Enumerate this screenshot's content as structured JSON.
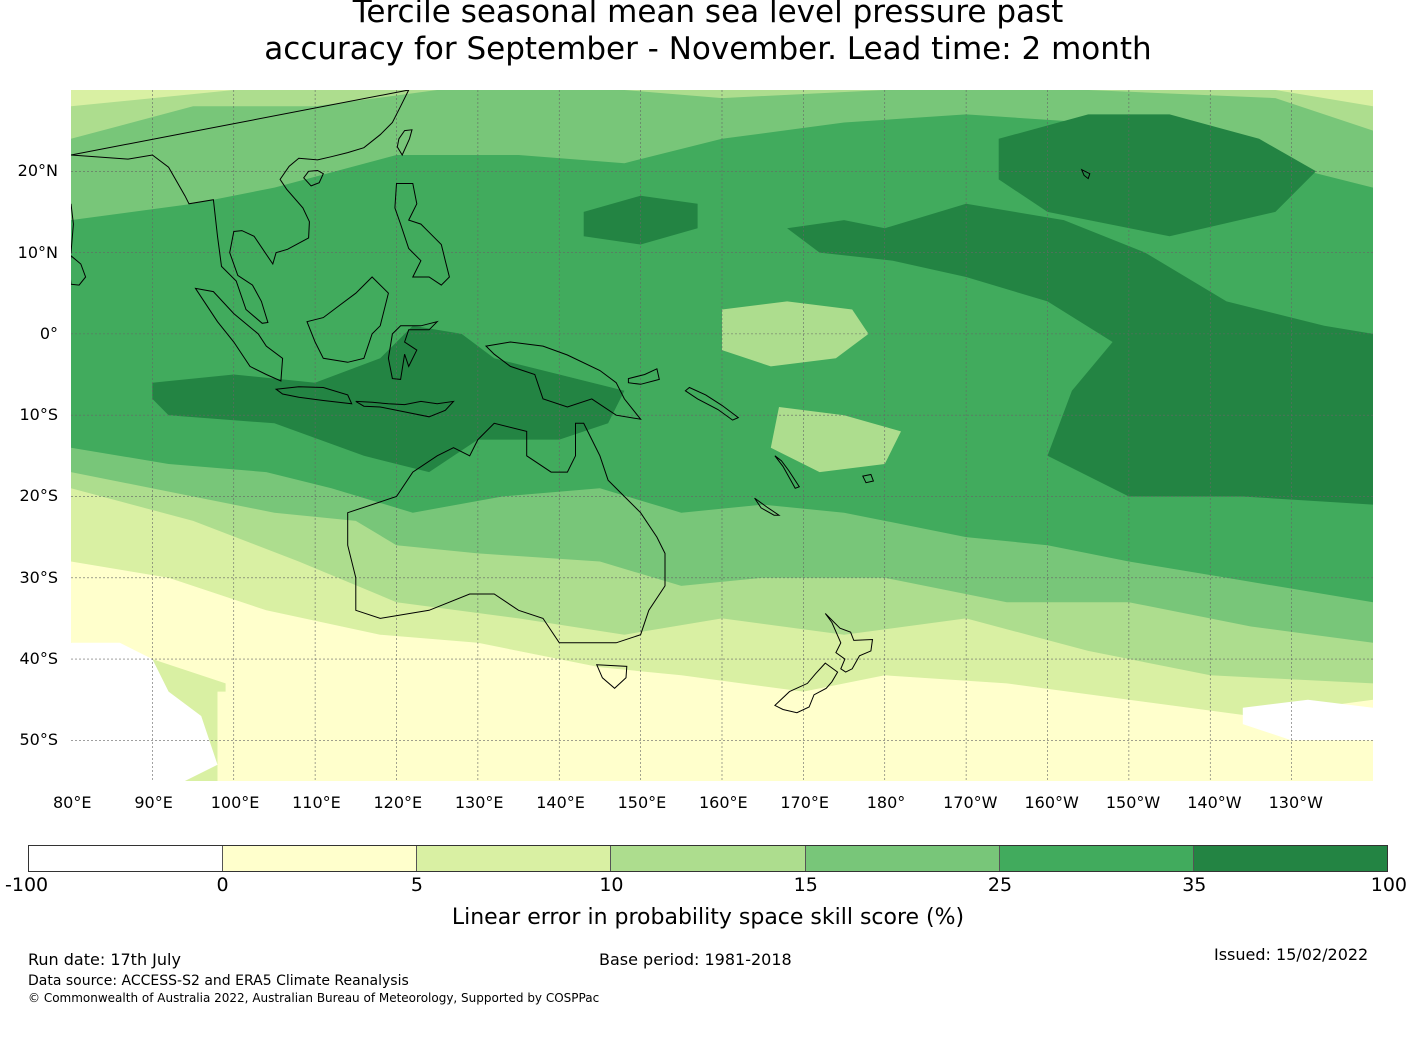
{
  "title": {
    "line1": "Tercile seasonal mean sea level pressure past",
    "line2": "accuracy for September - November. Lead time: 2 month"
  },
  "map": {
    "lon_range": [
      80,
      240
    ],
    "lat_range": [
      -55,
      30
    ],
    "lat_labels": [
      "20°N",
      "10°N",
      "0°",
      "10°S",
      "20°S",
      "30°S",
      "40°S",
      "50°S"
    ],
    "lon_labels": [
      "80°E",
      "90°E",
      "100°E",
      "110°E",
      "120°E",
      "130°E",
      "140°E",
      "150°E",
      "160°E",
      "170°E",
      "180°",
      "170°W",
      "160°W",
      "150°W",
      "140°W",
      "130°W"
    ],
    "coastline_color": "#000000",
    "gridline_color": "#666666"
  },
  "colorbar": {
    "ticks": [
      "-100",
      "0",
      "5",
      "10",
      "15",
      "25",
      "35",
      "100"
    ],
    "colors": [
      "#ffffff",
      "#ffffcc",
      "#d9f0a3",
      "#addd8e",
      "#78c679",
      "#41ab5d",
      "#238443"
    ],
    "label": "Linear error in probability space skill score (%)"
  },
  "footer": {
    "run_date": "Run date: 17th July",
    "base_period": "Base period: 1981-2018",
    "issued": "Issued: 15/02/2022",
    "data_source": "Data source: ACCESS-S2 and ERA5 Climate Reanalysis",
    "copyright": "© Commonwealth of Australia 2022, Australian Bureau of Meteorology, Supported by COSPPac"
  }
}
